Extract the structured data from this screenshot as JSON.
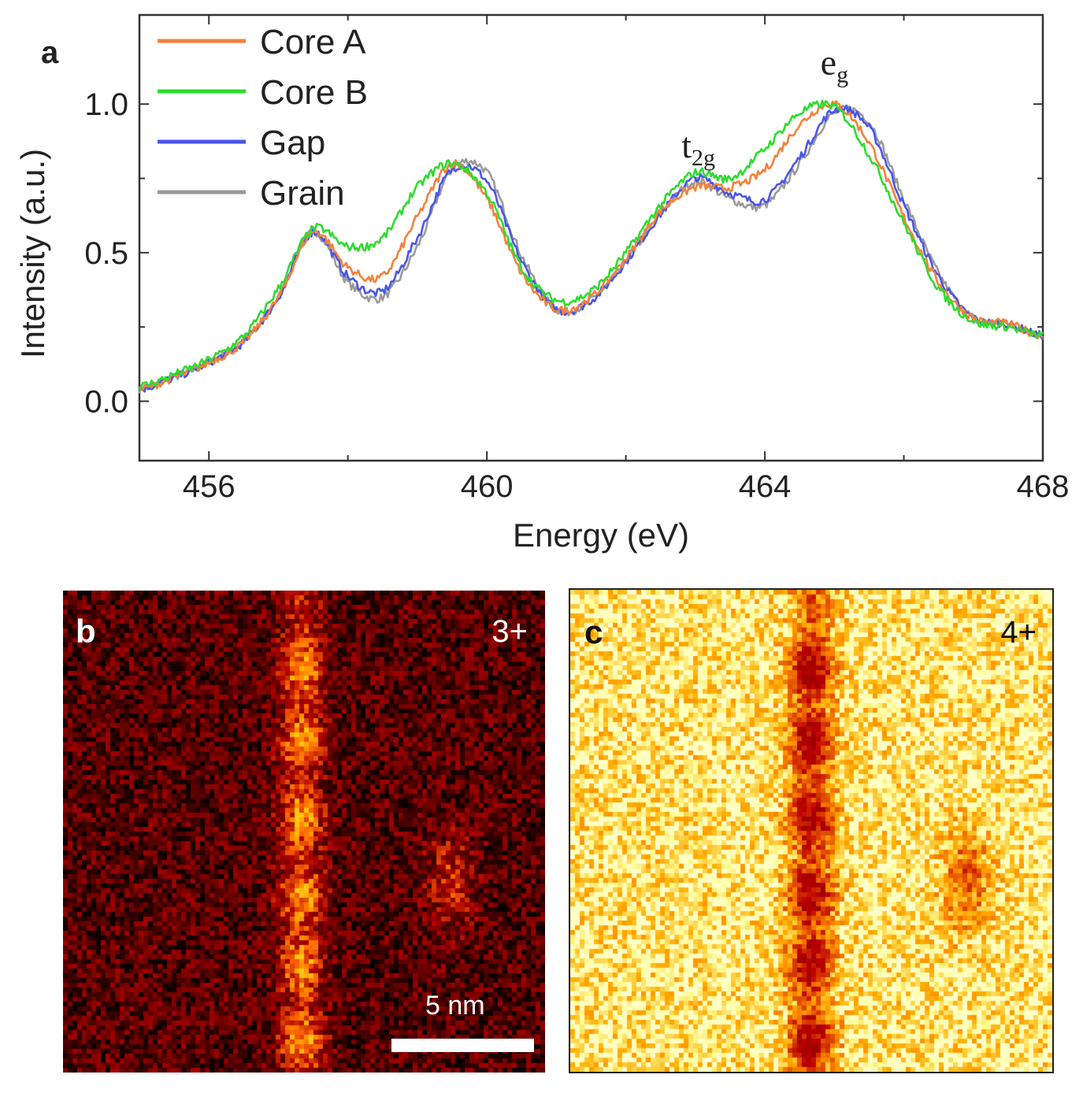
{
  "figure": {
    "panel_a_label": "a",
    "panel_b_label": "b",
    "panel_c_label": "c"
  },
  "chart_data": {
    "type": "line",
    "title": "",
    "xlabel": "Energy (eV)",
    "ylabel": "Intensity (a.u.)",
    "xlim": [
      455,
      468
    ],
    "ylim": [
      -0.2,
      1.3
    ],
    "xticks": [
      456,
      460,
      464,
      468
    ],
    "xtick_labels": [
      "456",
      "460",
      "464",
      "468"
    ],
    "yticks": [
      0.0,
      0.5,
      1.0
    ],
    "ytick_labels": [
      "0.0",
      "0.5",
      "1.0"
    ],
    "legend_position": "top-left",
    "annotations": [
      {
        "text": "t",
        "sub": "2g",
        "x": 462.8,
        "y": 0.82
      },
      {
        "text": "e",
        "sub": "g",
        "x": 464.8,
        "y": 1.1
      }
    ],
    "series": [
      {
        "name": "Core A",
        "color": "#f5813a",
        "x": [
          455.0,
          455.5,
          456.0,
          456.5,
          457.0,
          457.5,
          458.0,
          458.5,
          459.0,
          459.5,
          460.0,
          460.5,
          461.0,
          461.5,
          462.0,
          462.5,
          463.0,
          463.5,
          464.0,
          464.5,
          465.0,
          465.5,
          466.0,
          466.5,
          467.0,
          467.5,
          468.0
        ],
        "values": [
          0.04,
          0.08,
          0.13,
          0.2,
          0.35,
          0.57,
          0.45,
          0.42,
          0.62,
          0.8,
          0.68,
          0.43,
          0.31,
          0.35,
          0.48,
          0.64,
          0.72,
          0.72,
          0.78,
          0.93,
          1.0,
          0.87,
          0.62,
          0.4,
          0.28,
          0.26,
          0.22
        ]
      },
      {
        "name": "Core B",
        "color": "#2edc2e",
        "x": [
          455.0,
          455.5,
          456.0,
          456.5,
          457.0,
          457.5,
          458.0,
          458.5,
          459.0,
          459.5,
          460.0,
          460.5,
          461.0,
          461.5,
          462.0,
          462.5,
          463.0,
          463.5,
          464.0,
          464.5,
          465.0,
          465.5,
          466.0,
          466.5,
          467.0,
          467.5,
          468.0
        ],
        "values": [
          0.05,
          0.09,
          0.14,
          0.22,
          0.38,
          0.58,
          0.52,
          0.55,
          0.72,
          0.8,
          0.7,
          0.45,
          0.34,
          0.37,
          0.5,
          0.66,
          0.77,
          0.75,
          0.85,
          0.97,
          0.99,
          0.83,
          0.6,
          0.38,
          0.27,
          0.25,
          0.22
        ]
      },
      {
        "name": "Gap",
        "color": "#4a55e8",
        "x": [
          455.0,
          455.5,
          456.0,
          456.5,
          457.0,
          457.5,
          458.0,
          458.5,
          459.0,
          459.5,
          460.0,
          460.5,
          461.0,
          461.5,
          462.0,
          462.5,
          463.0,
          463.5,
          464.0,
          464.5,
          465.0,
          465.5,
          466.0,
          466.5,
          467.0,
          467.5,
          468.0
        ],
        "values": [
          0.04,
          0.08,
          0.13,
          0.2,
          0.35,
          0.57,
          0.42,
          0.37,
          0.55,
          0.78,
          0.74,
          0.47,
          0.31,
          0.34,
          0.47,
          0.63,
          0.75,
          0.7,
          0.68,
          0.82,
          0.98,
          0.92,
          0.66,
          0.42,
          0.28,
          0.26,
          0.22
        ]
      },
      {
        "name": "Grain",
        "color": "#9a9a9a",
        "x": [
          455.0,
          455.5,
          456.0,
          456.5,
          457.0,
          457.5,
          458.0,
          458.5,
          459.0,
          459.5,
          460.0,
          460.5,
          461.0,
          461.5,
          462.0,
          462.5,
          463.0,
          463.5,
          464.0,
          464.5,
          465.0,
          465.5,
          466.0,
          466.5,
          467.0,
          467.5,
          468.0
        ],
        "values": [
          0.04,
          0.08,
          0.13,
          0.2,
          0.35,
          0.57,
          0.4,
          0.35,
          0.52,
          0.78,
          0.77,
          0.49,
          0.31,
          0.34,
          0.47,
          0.63,
          0.74,
          0.68,
          0.66,
          0.8,
          0.97,
          0.94,
          0.68,
          0.43,
          0.28,
          0.26,
          0.22
        ]
      }
    ]
  },
  "maps": {
    "b": {
      "ion": "3+",
      "scale_label": "5 nm",
      "colormap": "hot-dark",
      "background_color": "#3a0603",
      "highlight_color": "#ffb020"
    },
    "c": {
      "ion": "4+",
      "colormap": "hot-light",
      "background_color": "#fff9b0",
      "highlight_color": "#a8060a"
    }
  }
}
